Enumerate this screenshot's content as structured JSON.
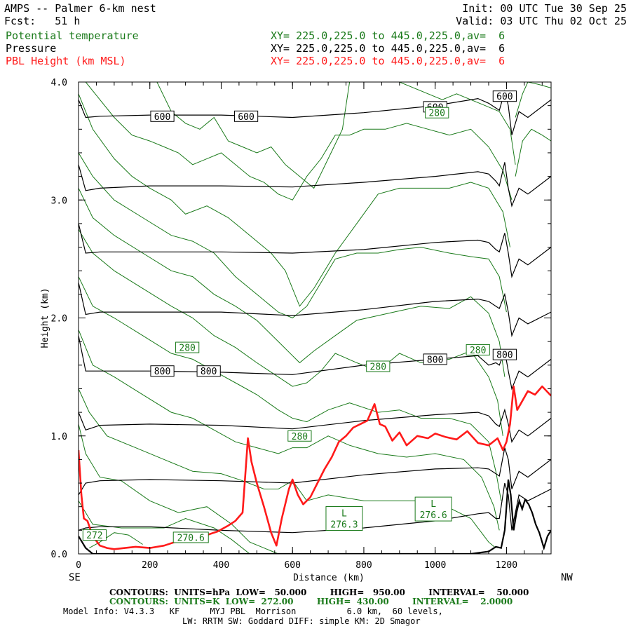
{
  "header": {
    "title": "AMPS -- Palmer 6-km nest",
    "fcst": "Fcst:   51 h",
    "init": "Init: 00 UTC Tue 30 Sep 25",
    "valid": "Valid: 03 UTC Thu 02 Oct 25"
  },
  "fields": [
    {
      "name": "Potential temperature",
      "xy": "XY= 225.0,225.0 to 445.0,225.0,av=  6",
      "color": "#1a7a1a"
    },
    {
      "name": "Pressure",
      "xy": "XY= 225.0,225.0 to 445.0,225.0,av=  6",
      "color": "#000000"
    },
    {
      "name": "PBL Height (km MSL)",
      "xy": "XY= 225.0,225.0 to 445.0,225.0,av=  6",
      "color": "#ff1a1a"
    }
  ],
  "footer": {
    "pressure_contours": "CONTOURS:  UNITS=hPa  LOW=   50.000        HIGH=   950.00        INTERVAL=    50.000",
    "theta_contours": "CONTOURS:  UNITS=K  LOW=  272.00        HIGH=  430.00        INTERVAL=    2.0000",
    "model_info": "Model Info: V4.3.3   KF      MYJ PBL  Morrison          6.0 km,  60 levels,",
    "model_info2": "LW: RRTM SW: Goddard DIFF: simple KM: 2D Smagor"
  },
  "chart_data": {
    "type": "line",
    "xlabel": "Distance (km)",
    "ylabel": "Height (km)",
    "xlim": [
      0,
      1325
    ],
    "ylim": [
      0,
      4
    ],
    "x_ticks": [
      "0",
      "200",
      "400",
      "600",
      "800",
      "1000",
      "1200"
    ],
    "y_ticks": [
      "0.0",
      "1.0",
      "2.0",
      "3.0",
      "4.0"
    ],
    "x_end_labels": {
      "left": "SE",
      "right": "NW"
    },
    "pbl_height": {
      "name": "PBL Height (km MSL)",
      "color": "#ff1a1a",
      "x": [
        0,
        8,
        15,
        25,
        40,
        60,
        80,
        100,
        130,
        160,
        200,
        240,
        270,
        300,
        330,
        360,
        390,
        420,
        440,
        460,
        475,
        485,
        500,
        520,
        540,
        555,
        570,
        590,
        600,
        615,
        630,
        650,
        670,
        690,
        710,
        730,
        750,
        770,
        790,
        810,
        830,
        845,
        860,
        880,
        900,
        920,
        950,
        980,
        1000,
        1030,
        1060,
        1090,
        1120,
        1150,
        1175,
        1190,
        1200,
        1210,
        1220,
        1230,
        1245,
        1260,
        1280,
        1300,
        1325
      ],
      "y": [
        0.88,
        0.5,
        0.3,
        0.28,
        0.15,
        0.07,
        0.05,
        0.04,
        0.05,
        0.06,
        0.05,
        0.07,
        0.1,
        0.12,
        0.14,
        0.16,
        0.19,
        0.24,
        0.28,
        0.35,
        0.98,
        0.78,
        0.6,
        0.4,
        0.18,
        0.07,
        0.3,
        0.55,
        0.63,
        0.5,
        0.42,
        0.48,
        0.6,
        0.72,
        0.82,
        0.95,
        1.0,
        1.07,
        1.1,
        1.13,
        1.27,
        1.1,
        1.08,
        0.96,
        1.03,
        0.92,
        1.0,
        0.98,
        1.02,
        0.99,
        0.97,
        1.04,
        0.94,
        0.92,
        0.98,
        0.88,
        0.95,
        1.1,
        1.42,
        1.22,
        1.3,
        1.38,
        1.35,
        1.42,
        1.34
      ]
    },
    "terrain": {
      "name": "Terrain",
      "color": "#000000",
      "x": [
        0,
        10,
        20,
        40,
        100,
        200,
        400,
        800,
        1100,
        1150,
        1170,
        1185,
        1195,
        1200,
        1205,
        1212,
        1220,
        1228,
        1236,
        1244,
        1252,
        1262,
        1272,
        1282,
        1292,
        1305,
        1315,
        1325
      ],
      "y": [
        0.15,
        0.1,
        0.05,
        0.0,
        0.0,
        0.0,
        0.0,
        0.0,
        0.0,
        0.02,
        0.06,
        0.05,
        0.2,
        0.4,
        0.63,
        0.5,
        0.2,
        0.35,
        0.45,
        0.38,
        0.46,
        0.42,
        0.35,
        0.25,
        0.18,
        0.05,
        0.15,
        0.2
      ]
    },
    "pressure_contours": [
      {
        "x": [
          0,
          20,
          60,
          200,
          400,
          600,
          800,
          1000,
          1120,
          1150,
          1170,
          1180,
          1195,
          1205,
          1215,
          1235,
          1260,
          1325
        ],
        "y": [
          0.2,
          0.22,
          0.23,
          0.23,
          0.2,
          0.18,
          0.22,
          0.28,
          0.34,
          0.35,
          0.3,
          0.3,
          0.6,
          0.5,
          0.2,
          0.5,
          0.45,
          0.55
        ]
      },
      {
        "x": [
          0,
          20,
          60,
          200,
          400,
          600,
          800,
          1000,
          1120,
          1150,
          1170,
          1180,
          1195,
          1205,
          1215,
          1235,
          1260,
          1325
        ],
        "y": [
          0.5,
          0.6,
          0.62,
          0.63,
          0.62,
          0.6,
          0.67,
          0.72,
          0.73,
          0.72,
          0.68,
          0.66,
          0.9,
          0.8,
          0.55,
          0.7,
          0.65,
          0.8
        ]
      },
      {
        "x": [
          0,
          20,
          60,
          200,
          400,
          600,
          800,
          1000,
          1120,
          1150,
          1170,
          1180,
          1195,
          1205,
          1215,
          1235,
          1260,
          1325
        ],
        "y": [
          1.2,
          1.05,
          1.09,
          1.1,
          1.09,
          1.06,
          1.13,
          1.18,
          1.2,
          1.17,
          1.1,
          1.08,
          1.22,
          1.1,
          0.95,
          1.05,
          1.0,
          1.15
        ]
      },
      {
        "x": [
          0,
          20,
          60,
          200,
          400,
          600,
          800,
          1000,
          1120,
          1150,
          1170,
          1180,
          1195,
          1205,
          1215,
          1235,
          1260,
          1325
        ],
        "y": [
          1.85,
          1.55,
          1.55,
          1.55,
          1.54,
          1.52,
          1.6,
          1.65,
          1.68,
          1.6,
          1.62,
          1.6,
          1.72,
          1.55,
          1.4,
          1.55,
          1.5,
          1.65
        ]
      },
      {
        "x": [
          0,
          20,
          60,
          200,
          400,
          600,
          800,
          1000,
          1120,
          1150,
          1170,
          1180,
          1195,
          1205,
          1215,
          1235,
          1260,
          1325
        ],
        "y": [
          2.3,
          2.03,
          2.05,
          2.05,
          2.05,
          2.02,
          2.07,
          2.14,
          2.16,
          2.14,
          2.1,
          2.08,
          2.2,
          2.05,
          1.85,
          2.0,
          1.95,
          2.05
        ]
      },
      {
        "x": [
          0,
          20,
          60,
          200,
          400,
          600,
          800,
          1000,
          1120,
          1150,
          1170,
          1180,
          1195,
          1205,
          1215,
          1235,
          1260,
          1325
        ],
        "y": [
          2.8,
          2.55,
          2.56,
          2.56,
          2.56,
          2.55,
          2.58,
          2.64,
          2.66,
          2.64,
          2.58,
          2.56,
          2.72,
          2.55,
          2.35,
          2.5,
          2.45,
          2.6
        ]
      },
      {
        "x": [
          0,
          20,
          60,
          200,
          400,
          600,
          800,
          1000,
          1120,
          1150,
          1170,
          1180,
          1195,
          1205,
          1215,
          1235,
          1260,
          1325
        ],
        "y": [
          3.3,
          3.08,
          3.1,
          3.12,
          3.12,
          3.11,
          3.15,
          3.2,
          3.24,
          3.22,
          3.16,
          3.12,
          3.32,
          3.1,
          2.95,
          3.1,
          3.05,
          3.2
        ]
      },
      {
        "x": [
          0,
          20,
          60,
          200,
          400,
          600,
          800,
          1000,
          1120,
          1150,
          1170,
          1180,
          1195,
          1205,
          1215,
          1235,
          1260,
          1325
        ],
        "y": [
          3.85,
          3.7,
          3.71,
          3.72,
          3.72,
          3.7,
          3.74,
          3.8,
          3.86,
          3.82,
          3.78,
          3.76,
          3.92,
          3.8,
          3.55,
          3.75,
          3.7,
          3.85
        ]
      }
    ],
    "theta_contours": [
      {
        "x": [
          30,
          60,
          100,
          140,
          180
        ],
        "y": [
          0.05,
          0.1,
          0.18,
          0.16,
          0.08
        ]
      },
      {
        "x": [
          0,
          40,
          120,
          240,
          300,
          380,
          430,
          480,
          500
        ],
        "y": [
          0.45,
          0.25,
          0.22,
          0.22,
          0.3,
          0.22,
          0.12,
          0.0,
          0.0
        ]
      },
      {
        "x": [
          0,
          20,
          60,
          120,
          200,
          280,
          360,
          430,
          480,
          520,
          560
        ],
        "y": [
          1.1,
          0.85,
          0.65,
          0.62,
          0.45,
          0.35,
          0.4,
          0.25,
          0.1,
          0.05,
          0.0
        ]
      },
      {
        "x": [
          0,
          30,
          80,
          160,
          240,
          320,
          400,
          460,
          520,
          560,
          600,
          640,
          700,
          800,
          900,
          1000,
          1100,
          1150,
          1170
        ],
        "y": [
          1.4,
          1.2,
          1.0,
          0.9,
          0.8,
          0.7,
          0.68,
          0.62,
          0.55,
          0.55,
          0.62,
          0.45,
          0.5,
          0.45,
          0.45,
          0.45,
          0.3,
          0.1,
          0.05
        ]
      },
      {
        "x": [
          0,
          40,
          100,
          180,
          260,
          320,
          380,
          440,
          500,
          560,
          600,
          640,
          700,
          760,
          840,
          920,
          1000,
          1080,
          1130,
          1165,
          1180
        ],
        "y": [
          1.9,
          1.6,
          1.5,
          1.35,
          1.2,
          1.15,
          1.05,
          0.95,
          0.9,
          0.85,
          0.9,
          0.9,
          1.0,
          0.92,
          0.85,
          0.82,
          0.85,
          0.8,
          0.65,
          0.4,
          0.2
        ]
      },
      {
        "x": [
          0,
          40,
          100,
          180,
          260,
          320,
          380,
          440,
          500,
          560,
          600,
          640,
          700,
          760,
          840,
          900,
          960,
          1040,
          1100,
          1150,
          1170,
          1185
        ],
        "y": [
          2.35,
          2.1,
          2.0,
          1.85,
          1.7,
          1.65,
          1.55,
          1.45,
          1.35,
          1.22,
          1.15,
          1.12,
          1.22,
          1.28,
          1.2,
          1.22,
          1.15,
          1.15,
          1.1,
          0.95,
          0.7,
          0.45
        ]
      },
      {
        "x": [
          0,
          40,
          100,
          180,
          260,
          320,
          380,
          440,
          500,
          560,
          600,
          640,
          680,
          720,
          780,
          840,
          900,
          960,
          1040,
          1100,
          1150,
          1175,
          1190
        ],
        "y": [
          2.75,
          2.55,
          2.4,
          2.25,
          2.1,
          2.0,
          1.85,
          1.75,
          1.62,
          1.5,
          1.42,
          1.45,
          1.55,
          1.7,
          1.62,
          1.55,
          1.7,
          1.62,
          1.65,
          1.72,
          1.5,
          1.3,
          1.0
        ]
      },
      {
        "x": [
          0,
          40,
          100,
          180,
          260,
          320,
          380,
          440,
          500,
          560,
          600,
          620,
          660,
          720,
          780,
          840,
          900,
          960,
          1040,
          1100,
          1150,
          1180,
          1195
        ],
        "y": [
          3.1,
          2.85,
          2.7,
          2.55,
          2.4,
          2.35,
          2.2,
          2.1,
          1.98,
          1.8,
          1.68,
          1.62,
          1.72,
          1.85,
          1.98,
          2.02,
          2.06,
          2.1,
          2.08,
          2.18,
          2.04,
          1.8,
          1.5
        ]
      },
      {
        "x": [
          0,
          40,
          100,
          180,
          260,
          320,
          380,
          440,
          500,
          560,
          600,
          640,
          680,
          720,
          780,
          840,
          900,
          960,
          1040,
          1100,
          1150,
          1180,
          1200
        ],
        "y": [
          3.4,
          3.2,
          3.0,
          2.85,
          2.7,
          2.65,
          2.55,
          2.35,
          2.2,
          2.05,
          2.0,
          2.1,
          2.3,
          2.5,
          2.55,
          2.55,
          2.58,
          2.6,
          2.55,
          2.52,
          2.5,
          2.35,
          2.05
        ]
      },
      {
        "x": [
          0,
          40,
          100,
          150,
          200,
          260,
          300,
          360,
          420,
          460,
          500,
          540,
          580,
          620,
          660,
          720,
          780,
          840,
          900,
          960,
          1040,
          1100,
          1150,
          1190,
          1210
        ],
        "y": [
          3.9,
          3.6,
          3.35,
          3.2,
          3.1,
          3.0,
          2.88,
          2.95,
          2.85,
          2.75,
          2.65,
          2.55,
          2.4,
          2.1,
          2.25,
          2.55,
          2.8,
          3.05,
          3.1,
          3.1,
          3.1,
          3.15,
          3.1,
          2.9,
          2.6
        ]
      },
      {
        "x": [
          20,
          60,
          100,
          150,
          200,
          240,
          280,
          320,
          360,
          400,
          440,
          480,
          520,
          560,
          600,
          640,
          680,
          720,
          760,
          800,
          860,
          920,
          980,
          1040,
          1100,
          1150,
          1190,
          1215
        ],
        "y": [
          4.0,
          3.85,
          3.7,
          3.55,
          3.5,
          3.45,
          3.4,
          3.3,
          3.35,
          3.4,
          3.3,
          3.2,
          3.15,
          3.05,
          3.0,
          3.2,
          3.35,
          3.55,
          3.55,
          3.6,
          3.6,
          3.65,
          3.6,
          3.55,
          3.6,
          3.45,
          3.25,
          3.0
        ]
      },
      {
        "x": [
          220,
          260,
          300,
          340,
          380,
          420,
          460,
          500,
          540,
          580,
          620,
          660,
          700,
          740,
          760
        ],
        "y": [
          4.0,
          3.75,
          3.65,
          3.6,
          3.7,
          3.5,
          3.45,
          3.4,
          3.45,
          3.3,
          3.2,
          3.1,
          3.35,
          3.6,
          4.0
        ]
      },
      {
        "x": [
          900,
          940,
          980,
          1020,
          1060,
          1100,
          1140,
          1180,
          1210,
          1225
        ],
        "y": [
          4.0,
          3.95,
          3.9,
          3.85,
          3.9,
          3.85,
          3.8,
          3.75,
          3.6,
          3.3
        ]
      },
      {
        "x": [
          1225,
          1245,
          1260,
          1290,
          1325
        ],
        "y": [
          3.7,
          3.9,
          4.0,
          3.98,
          3.95
        ]
      },
      {
        "x": [
          1225,
          1245,
          1270,
          1300,
          1325
        ],
        "y": [
          3.2,
          3.5,
          3.6,
          3.55,
          3.5
        ]
      }
    ],
    "pressure_labels": [
      {
        "text": "600",
        "x": 235,
        "y": 3.71
      },
      {
        "text": "600",
        "x": 470,
        "y": 3.71
      },
      {
        "text": "600",
        "x": 1000,
        "y": 3.79
      },
      {
        "text": "600",
        "x": 1195,
        "y": 3.88
      },
      {
        "text": "800",
        "x": 235,
        "y": 1.55
      },
      {
        "text": "800",
        "x": 365,
        "y": 1.55
      },
      {
        "text": "800",
        "x": 1000,
        "y": 1.65
      },
      {
        "text": "800",
        "x": 1195,
        "y": 1.69
      }
    ],
    "theta_labels": [
      {
        "text": "280",
        "x": 305,
        "y": 1.75
      },
      {
        "text": "280",
        "x": 620,
        "y": 1.0
      },
      {
        "text": "280",
        "x": 840,
        "y": 1.59
      },
      {
        "text": "280",
        "x": 1120,
        "y": 1.73
      },
      {
        "text": "280",
        "x": 1005,
        "y": 3.74
      },
      {
        "text": "272",
        "x": 45,
        "y": 0.16
      },
      {
        "text": "270.6",
        "x": 315,
        "y": 0.14
      }
    ],
    "low_markers": [
      {
        "letter": "L",
        "value": "276.3",
        "x": 745,
        "y": 0.3
      },
      {
        "letter": "L",
        "value": "276.6",
        "x": 995,
        "y": 0.38
      }
    ]
  }
}
